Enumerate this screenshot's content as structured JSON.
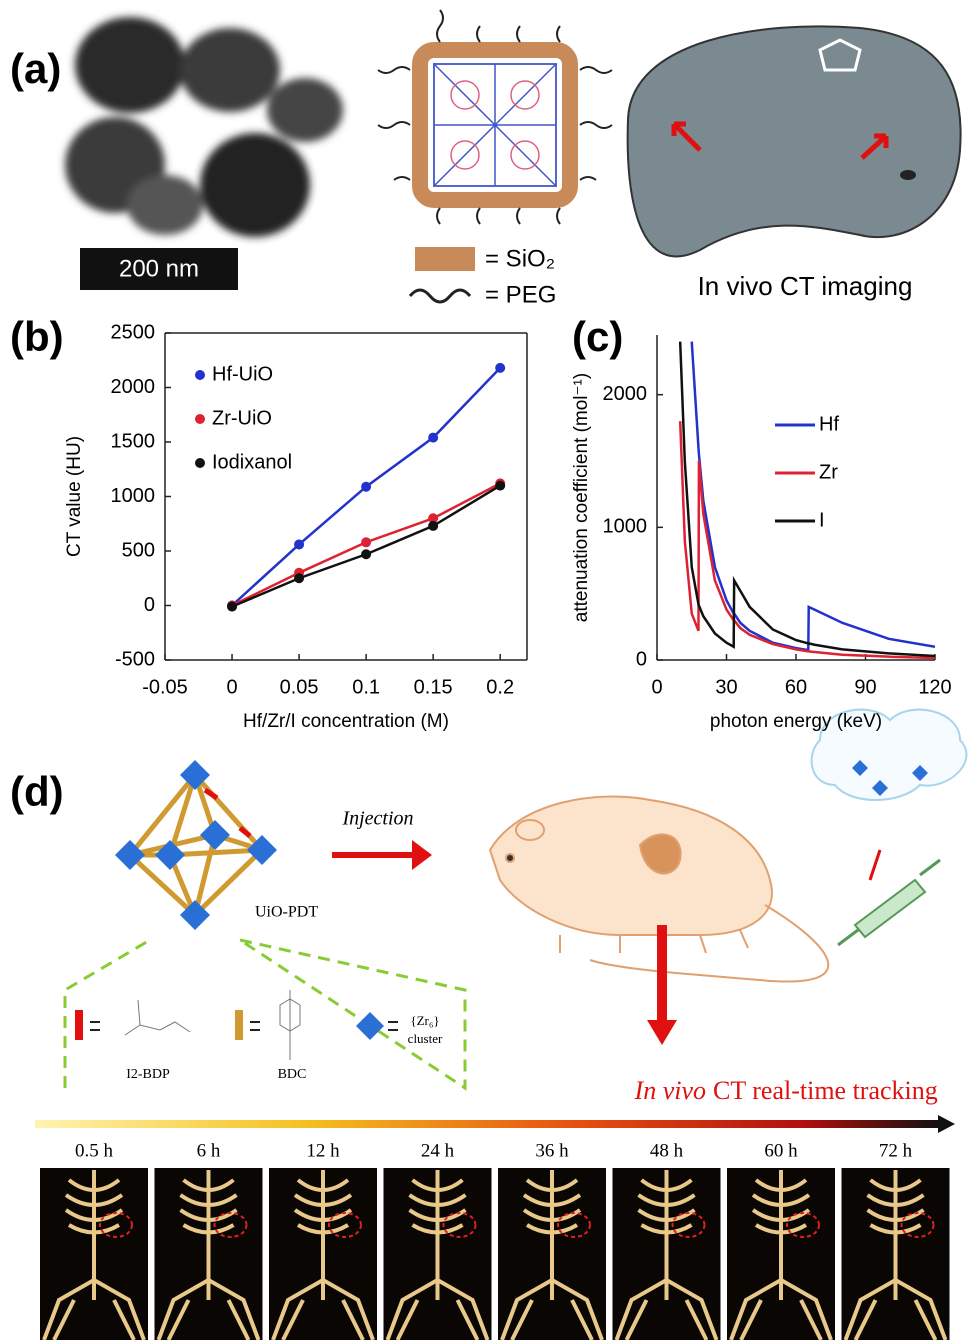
{
  "chart_data": [
    {
      "type": "line",
      "markers": true,
      "x_label": "Hf/Zr/I concentration (M)",
      "y_label": "CT value (HU)",
      "x": [
        0,
        0.05,
        0.1,
        0.15,
        0.2
      ],
      "series": [
        {
          "name": "Hf-UiO",
          "color": "#2233cc",
          "values": [
            0,
            560,
            1090,
            1540,
            2180
          ]
        },
        {
          "name": "Zr-UiO",
          "color": "#dd2233",
          "values": [
            0,
            300,
            580,
            800,
            1120
          ]
        },
        {
          "name": "Iodixanol",
          "color": "#111111",
          "values": [
            -10,
            250,
            470,
            730,
            1100
          ]
        }
      ],
      "xlim": [
        -0.05,
        0.22
      ],
      "xticks": [
        -0.05,
        0,
        0.05,
        0.1,
        0.15,
        0.2
      ],
      "ylim": [
        -500,
        2500
      ],
      "yticks": [
        -500,
        0,
        500,
        1000,
        1500,
        2000,
        2500
      ],
      "legend": "upper left"
    },
    {
      "type": "line",
      "markers": false,
      "x_label": "photon energy (keV)",
      "y_label": "attenuation coefficient (mol⁻¹)",
      "x": [
        10,
        12,
        15,
        17.9,
        18.1,
        20,
        25,
        30,
        33.1,
        33.3,
        36,
        40,
        50,
        60,
        65.3,
        65.5,
        68,
        80,
        100,
        120
      ],
      "series": [
        {
          "name": "Hf",
          "color": "#2233cc",
          "values": [
            null,
            null,
            2400,
            1600,
            1550,
            1200,
            700,
            450,
            350,
            350,
            280,
            220,
            130,
            90,
            75,
            400,
            380,
            280,
            160,
            100
          ]
        },
        {
          "name": "Zr",
          "color": "#dd2233",
          "values": [
            1800,
            900,
            350,
            220,
            1500,
            1100,
            600,
            380,
            300,
            300,
            240,
            190,
            120,
            80,
            65,
            65,
            60,
            40,
            25,
            15
          ]
        },
        {
          "name": "I",
          "color": "#111111",
          "values": [
            2400,
            1500,
            700,
            420,
            410,
            330,
            200,
            130,
            100,
            600,
            520,
            400,
            230,
            150,
            125,
            125,
            115,
            80,
            50,
            30
          ]
        }
      ],
      "xlim": [
        0,
        120
      ],
      "xticks": [
        0,
        30,
        60,
        90,
        120
      ],
      "ylim": [
        0,
        2450
      ],
      "yticks": [
        0,
        1000,
        2000
      ],
      "legend": "center right"
    }
  ],
  "figure": {
    "panel_labels": [
      "(a)",
      "(b)",
      "(c)",
      "(d)"
    ],
    "scale_bar": "200 nm",
    "legend_sio2": "= SiO₂",
    "legend_peg": "= PEG",
    "ct_caption": "In vivo CT imaging",
    "injection": "Injection",
    "uio_label": "UiO-PDT",
    "i2bdp": "I2-BDP",
    "bdc": "BDC",
    "cluster_top": "{Zr₆}",
    "cluster_bottom": "cluster",
    "tracking_italic": "In vivo",
    "tracking_rest": "CT real-time tracking",
    "times": [
      "0.5 h",
      "6 h",
      "12 h",
      "24 h",
      "36 h",
      "48 h",
      "60 h",
      "72 h"
    ]
  }
}
